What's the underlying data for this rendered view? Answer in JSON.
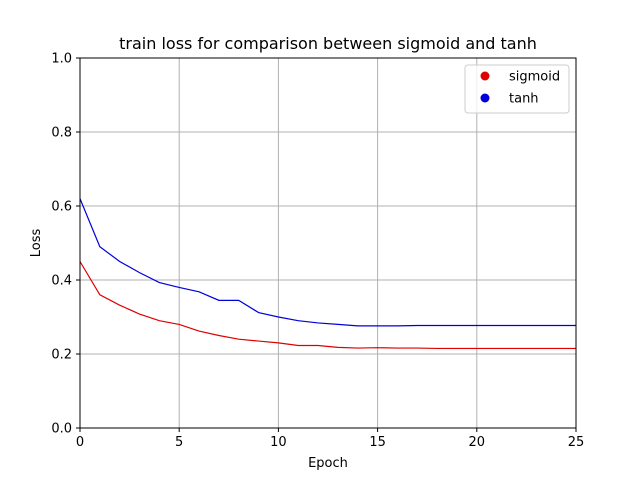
{
  "chart_data": {
    "type": "line",
    "title": "train loss for comparison between sigmoid and tanh",
    "xlabel": "Epoch",
    "ylabel": "Loss",
    "xlim": [
      0,
      25
    ],
    "ylim": [
      0.0,
      1.0
    ],
    "xticks": [
      0,
      5,
      10,
      15,
      20,
      25
    ],
    "yticks": [
      0.0,
      0.2,
      0.4,
      0.6,
      0.8,
      1.0
    ],
    "ytick_labels": [
      "0.0",
      "0.2",
      "0.4",
      "0.6",
      "0.8",
      "1.0"
    ],
    "grid": true,
    "legend": "top-right",
    "legend_marker": "circle",
    "x": [
      0,
      1,
      2,
      3,
      4,
      5,
      6,
      7,
      8,
      9,
      10,
      11,
      12,
      13,
      14,
      15,
      16,
      17,
      18,
      19,
      20,
      21,
      22,
      23,
      24,
      25
    ],
    "series": [
      {
        "name": "sigmoid",
        "color": "#e00000",
        "values": [
          0.45,
          0.36,
          0.332,
          0.308,
          0.29,
          0.28,
          0.262,
          0.25,
          0.24,
          0.235,
          0.23,
          0.223,
          0.223,
          0.218,
          0.216,
          0.217,
          0.216,
          0.216,
          0.215,
          0.215,
          0.215,
          0.215,
          0.215,
          0.215,
          0.215,
          0.215
        ]
      },
      {
        "name": "tanh",
        "color": "#0000dd",
        "values": [
          0.62,
          0.49,
          0.45,
          0.42,
          0.393,
          0.38,
          0.368,
          0.345,
          0.345,
          0.312,
          0.3,
          0.29,
          0.284,
          0.28,
          0.276,
          0.276,
          0.276,
          0.277,
          0.277,
          0.277,
          0.277,
          0.277,
          0.277,
          0.277,
          0.277,
          0.277
        ]
      }
    ]
  }
}
